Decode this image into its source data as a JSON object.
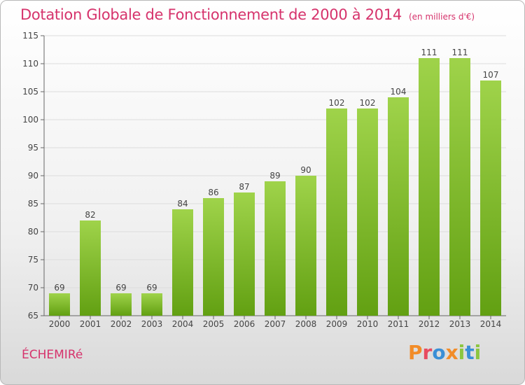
{
  "header": {
    "title": "Dotation Globale de Fonctionnement de 2000 à 2014",
    "unit": "(en milliers d'€)"
  },
  "footer": {
    "commune": "ÉCHEMIRé",
    "logo_text": "Proxiti",
    "logo_colors": [
      "#f28c28",
      "#e84a5f",
      "#3a8fd6",
      "#f28c28",
      "#8cc63f",
      "#3a8fd6",
      "#8cc63f"
    ]
  },
  "chart_data": {
    "type": "bar",
    "categories": [
      "2000",
      "2001",
      "2002",
      "2003",
      "2004",
      "2005",
      "2006",
      "2007",
      "2008",
      "2009",
      "2010",
      "2011",
      "2012",
      "2013",
      "2014"
    ],
    "values": [
      69,
      82,
      69,
      69,
      84,
      86,
      87,
      89,
      90,
      102,
      102,
      104,
      111,
      111,
      107
    ],
    "ylim": [
      65,
      115
    ],
    "yticks": [
      65,
      70,
      75,
      80,
      85,
      90,
      95,
      100,
      105,
      110,
      115
    ],
    "grid": true,
    "bar_color_top": "#9fd34a",
    "bar_color_bottom": "#62a012",
    "xlabel": "",
    "ylabel": ""
  }
}
